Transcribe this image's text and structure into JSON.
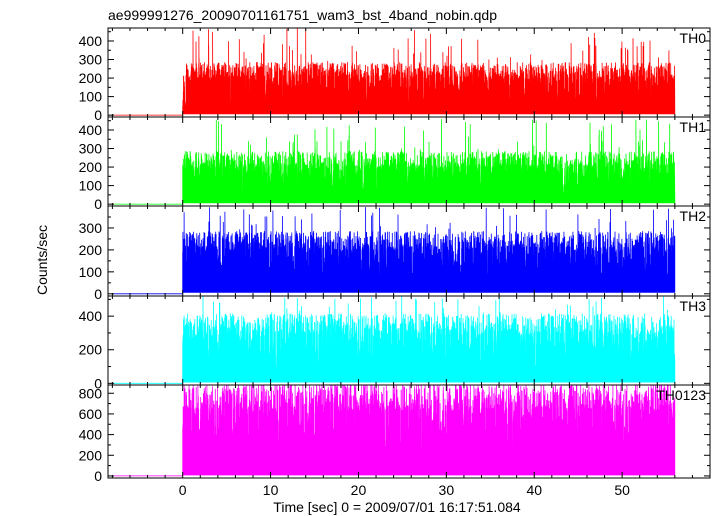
{
  "title": "ae999991276_20090701161751_wam3_bst_4band_nobin.qdp",
  "ylabel": "Counts/sec",
  "xlabel": "Time [sec] 0 = 2009/07/01 16:17:51.084",
  "x_ticks": [
    "0",
    "10",
    "20",
    "30",
    "40",
    "50"
  ],
  "chart_data": [
    {
      "type": "line",
      "series": [
        {
          "name": "TH0",
          "color": "#ff0000"
        }
      ],
      "x_range": [
        -8.5,
        60
      ],
      "ylim": [
        -10,
        470
      ],
      "y_ticks": [
        0,
        100,
        200,
        300,
        400
      ],
      "data_x_range": [
        -8,
        56
      ],
      "onset_x": 0,
      "pre_onset_level": 0,
      "typical_peak": 220,
      "max_peak": 470
    },
    {
      "type": "line",
      "series": [
        {
          "name": "TH1",
          "color": "#00ff00"
        }
      ],
      "x_range": [
        -8.5,
        60
      ],
      "ylim": [
        -10,
        470
      ],
      "y_ticks": [
        0,
        100,
        200,
        300,
        400
      ],
      "data_x_range": [
        -8,
        56
      ],
      "onset_x": 0,
      "pre_onset_level": 0,
      "typical_peak": 220,
      "max_peak": 460
    },
    {
      "type": "line",
      "series": [
        {
          "name": "TH2",
          "color": "#0000ff"
        }
      ],
      "x_range": [
        -8.5,
        60
      ],
      "ylim": [
        -10,
        400
      ],
      "y_ticks": [
        0,
        100,
        200,
        300
      ],
      "data_x_range": [
        -8,
        56
      ],
      "onset_x": 0,
      "pre_onset_level": 0,
      "typical_peak": 220,
      "max_peak": 400
    },
    {
      "type": "line",
      "series": [
        {
          "name": "TH3",
          "color": "#00ffff"
        }
      ],
      "x_range": [
        -8.5,
        60
      ],
      "ylim": [
        -10,
        520
      ],
      "y_ticks": [
        0,
        200,
        400
      ],
      "data_x_range": [
        -8,
        56
      ],
      "onset_x": 0,
      "pre_onset_level": 0,
      "typical_peak": 320,
      "max_peak": 520
    },
    {
      "type": "line",
      "series": [
        {
          "name": "TH0123",
          "color": "#ff00ff"
        }
      ],
      "x_range": [
        -8.5,
        60
      ],
      "ylim": [
        -20,
        880
      ],
      "y_ticks": [
        0,
        200,
        400,
        600,
        800
      ],
      "data_x_range": [
        -8,
        56
      ],
      "onset_x": 0,
      "pre_onset_level": 0,
      "typical_peak": 700,
      "max_peak": 880
    }
  ]
}
